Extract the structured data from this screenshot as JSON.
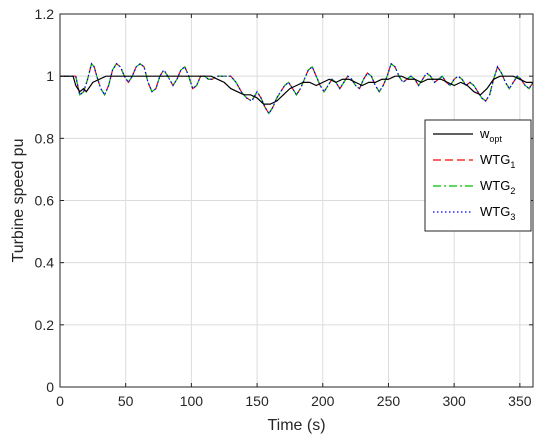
{
  "chart_data": {
    "type": "line",
    "title": "",
    "xlabel": "Time (s)",
    "ylabel": "Turbine speed pu",
    "xlim": [
      0,
      360
    ],
    "ylim": [
      0,
      1.2
    ],
    "x_ticks": [
      0,
      50,
      100,
      150,
      200,
      250,
      300,
      350
    ],
    "y_ticks": [
      0,
      0.2,
      0.4,
      0.6,
      0.8,
      1,
      1.2
    ],
    "x_tick_labels": [
      "0",
      "50",
      "100",
      "150",
      "200",
      "250",
      "300",
      "350"
    ],
    "y_tick_labels": [
      "0",
      "0.2",
      "0.4",
      "0.6",
      "0.8",
      "1",
      "1.2"
    ],
    "grid": true,
    "legend_position": "right",
    "series": [
      {
        "name": "w",
        "name_sub": "opt",
        "color": "#000000",
        "dash": "solid",
        "x": [
          0,
          5,
          10,
          12,
          15,
          18,
          20,
          25,
          30,
          35,
          40,
          45,
          50,
          55,
          60,
          70,
          80,
          90,
          100,
          110,
          115,
          120,
          125,
          130,
          135,
          140,
          145,
          150,
          155,
          160,
          165,
          170,
          175,
          180,
          185,
          190,
          195,
          200,
          205,
          210,
          215,
          220,
          225,
          230,
          235,
          240,
          245,
          250,
          255,
          260,
          265,
          270,
          275,
          280,
          285,
          290,
          295,
          300,
          305,
          310,
          315,
          320,
          325,
          330,
          335,
          340,
          345,
          350,
          355,
          360
        ],
        "y": [
          1.0,
          1.0,
          1.0,
          0.97,
          0.95,
          0.96,
          0.95,
          0.98,
          0.99,
          1.0,
          1.0,
          1.0,
          1.0,
          1.0,
          1.0,
          1.0,
          1.0,
          1.0,
          1.0,
          1.0,
          1.0,
          0.99,
          0.98,
          0.96,
          0.95,
          0.94,
          0.94,
          0.93,
          0.91,
          0.91,
          0.92,
          0.94,
          0.96,
          0.97,
          0.98,
          0.98,
          0.97,
          0.98,
          0.99,
          0.98,
          0.99,
          0.99,
          0.98,
          0.97,
          0.98,
          0.98,
          0.99,
          0.99,
          1.0,
          1.0,
          0.99,
          0.99,
          0.98,
          0.99,
          0.99,
          0.99,
          0.98,
          0.97,
          0.98,
          0.97,
          0.95,
          0.94,
          0.96,
          0.99,
          1.0,
          1.0,
          1.0,
          0.99,
          0.98,
          0.98
        ]
      },
      {
        "name": "WTG",
        "name_sub": "1",
        "color": "#ff0000",
        "dash": "dashed",
        "x": [
          0,
          4,
          8,
          12,
          15,
          18,
          21,
          24,
          26,
          28,
          31,
          34,
          37,
          40,
          43,
          46,
          49,
          52,
          55,
          58,
          61,
          64,
          67,
          70,
          73,
          76,
          79,
          82,
          86,
          89,
          92,
          95,
          98,
          101,
          104,
          107,
          110,
          113,
          116,
          119,
          122,
          126,
          130,
          134,
          138,
          142,
          146,
          150,
          153,
          156,
          159,
          162,
          165,
          168,
          171,
          174,
          177,
          180,
          183,
          186,
          189,
          192,
          195,
          198,
          201,
          204,
          207,
          210,
          213,
          216,
          219,
          222,
          225,
          228,
          231,
          234,
          237,
          240,
          243,
          246,
          249,
          252,
          255,
          258,
          261,
          264,
          267,
          270,
          273,
          276,
          279,
          282,
          285,
          288,
          291,
          294,
          297,
          300,
          303,
          306,
          309,
          312,
          315,
          318,
          321,
          324,
          327,
          330,
          333,
          336,
          339,
          342,
          345,
          348,
          351,
          354,
          357,
          360
        ],
        "y": [
          1.0,
          1.0,
          1.0,
          1.0,
          0.94,
          0.95,
          0.99,
          1.04,
          1.03,
          1.0,
          0.96,
          0.94,
          0.97,
          1.02,
          1.04,
          1.03,
          1.0,
          0.98,
          1.0,
          1.03,
          1.04,
          1.03,
          0.98,
          0.95,
          0.96,
          1.0,
          1.02,
          1.0,
          0.97,
          0.99,
          1.02,
          1.03,
          1.0,
          0.96,
          0.97,
          1.0,
          1.0,
          0.99,
          0.99,
          1.0,
          1.0,
          1.0,
          1.0,
          0.98,
          0.95,
          0.93,
          0.92,
          0.95,
          0.93,
          0.9,
          0.88,
          0.9,
          0.93,
          0.95,
          0.97,
          0.98,
          0.96,
          0.94,
          0.96,
          0.99,
          1.02,
          1.03,
          1.0,
          0.97,
          0.95,
          0.97,
          0.99,
          0.98,
          0.96,
          0.98,
          1.0,
          0.99,
          0.97,
          0.96,
          0.99,
          1.01,
          1.0,
          0.97,
          0.95,
          0.97,
          1.0,
          1.04,
          1.03,
          1.0,
          0.98,
          0.99,
          1.0,
          0.99,
          0.97,
          0.99,
          1.01,
          1.0,
          0.98,
          0.99,
          1.0,
          0.98,
          0.97,
          0.99,
          1.0,
          0.99,
          0.97,
          0.98,
          0.97,
          0.95,
          0.93,
          0.92,
          0.94,
          0.99,
          1.03,
          1.01,
          0.98,
          0.96,
          0.98,
          1.0,
          0.99,
          0.97,
          0.96,
          0.98
        ]
      },
      {
        "name": "WTG",
        "name_sub": "2",
        "color": "#00c000",
        "dash": "dashdot",
        "x": [
          0,
          4,
          8,
          12,
          15,
          18,
          21,
          24,
          26,
          28,
          31,
          34,
          37,
          40,
          43,
          46,
          49,
          52,
          55,
          58,
          61,
          64,
          67,
          70,
          73,
          76,
          79,
          82,
          86,
          89,
          92,
          95,
          98,
          101,
          104,
          107,
          110,
          113,
          116,
          119,
          122,
          126,
          130,
          134,
          138,
          142,
          146,
          150,
          153,
          156,
          159,
          162,
          165,
          168,
          171,
          174,
          177,
          180,
          183,
          186,
          189,
          192,
          195,
          198,
          201,
          204,
          207,
          210,
          213,
          216,
          219,
          222,
          225,
          228,
          231,
          234,
          237,
          240,
          243,
          246,
          249,
          252,
          255,
          258,
          261,
          264,
          267,
          270,
          273,
          276,
          279,
          282,
          285,
          288,
          291,
          294,
          297,
          300,
          303,
          306,
          309,
          312,
          315,
          318,
          321,
          324,
          327,
          330,
          333,
          336,
          339,
          342,
          345,
          348,
          351,
          354,
          357,
          360
        ],
        "y": [
          1.0,
          1.0,
          1.0,
          1.0,
          0.94,
          0.95,
          0.99,
          1.04,
          1.03,
          1.0,
          0.96,
          0.94,
          0.97,
          1.02,
          1.04,
          1.03,
          1.0,
          0.98,
          1.0,
          1.03,
          1.04,
          1.03,
          0.98,
          0.95,
          0.96,
          1.0,
          1.02,
          1.0,
          0.97,
          0.99,
          1.02,
          1.03,
          1.0,
          0.96,
          0.97,
          1.0,
          1.0,
          0.99,
          0.99,
          1.0,
          1.0,
          1.0,
          1.0,
          0.98,
          0.95,
          0.93,
          0.92,
          0.95,
          0.93,
          0.9,
          0.88,
          0.9,
          0.93,
          0.95,
          0.97,
          0.98,
          0.96,
          0.94,
          0.96,
          0.99,
          1.02,
          1.03,
          1.0,
          0.97,
          0.95,
          0.97,
          0.99,
          0.98,
          0.96,
          0.98,
          1.0,
          0.99,
          0.97,
          0.96,
          0.99,
          1.01,
          1.0,
          0.97,
          0.95,
          0.97,
          1.0,
          1.04,
          1.03,
          1.0,
          0.98,
          0.99,
          1.0,
          0.99,
          0.97,
          0.99,
          1.01,
          1.0,
          0.98,
          0.99,
          1.0,
          0.98,
          0.97,
          0.99,
          1.0,
          0.99,
          0.97,
          0.98,
          0.97,
          0.95,
          0.93,
          0.92,
          0.94,
          0.99,
          1.03,
          1.01,
          0.98,
          0.96,
          0.98,
          1.0,
          0.99,
          0.97,
          0.96,
          0.98
        ]
      },
      {
        "name": "WTG",
        "name_sub": "3",
        "color": "#0000ff",
        "dash": "dotted",
        "x": [
          0,
          4,
          8,
          12,
          15,
          18,
          21,
          24,
          26,
          28,
          31,
          34,
          37,
          40,
          43,
          46,
          49,
          52,
          55,
          58,
          61,
          64,
          67,
          70,
          73,
          76,
          79,
          82,
          86,
          89,
          92,
          95,
          98,
          101,
          104,
          107,
          110,
          113,
          116,
          119,
          122,
          126,
          130,
          134,
          138,
          142,
          146,
          150,
          153,
          156,
          159,
          162,
          165,
          168,
          171,
          174,
          177,
          180,
          183,
          186,
          189,
          192,
          195,
          198,
          201,
          204,
          207,
          210,
          213,
          216,
          219,
          222,
          225,
          228,
          231,
          234,
          237,
          240,
          243,
          246,
          249,
          252,
          255,
          258,
          261,
          264,
          267,
          270,
          273,
          276,
          279,
          282,
          285,
          288,
          291,
          294,
          297,
          300,
          303,
          306,
          309,
          312,
          315,
          318,
          321,
          324,
          327,
          330,
          333,
          336,
          339,
          342,
          345,
          348,
          351,
          354,
          357,
          360
        ],
        "y": [
          1.0,
          1.0,
          1.0,
          1.0,
          0.94,
          0.95,
          0.99,
          1.04,
          1.03,
          1.0,
          0.96,
          0.94,
          0.97,
          1.02,
          1.04,
          1.03,
          1.0,
          0.98,
          1.0,
          1.03,
          1.04,
          1.03,
          0.98,
          0.95,
          0.96,
          1.0,
          1.02,
          1.0,
          0.97,
          0.99,
          1.02,
          1.03,
          1.0,
          0.96,
          0.97,
          1.0,
          1.0,
          0.99,
          0.99,
          1.0,
          1.0,
          1.0,
          1.0,
          0.98,
          0.95,
          0.93,
          0.92,
          0.95,
          0.93,
          0.9,
          0.88,
          0.9,
          0.93,
          0.95,
          0.97,
          0.98,
          0.96,
          0.94,
          0.96,
          0.99,
          1.02,
          1.03,
          1.0,
          0.97,
          0.95,
          0.97,
          0.99,
          0.98,
          0.96,
          0.98,
          1.0,
          0.99,
          0.97,
          0.96,
          0.99,
          1.01,
          1.0,
          0.97,
          0.95,
          0.97,
          1.0,
          1.04,
          1.03,
          1.0,
          0.98,
          0.99,
          1.0,
          0.99,
          0.97,
          0.99,
          1.01,
          1.0,
          0.98,
          0.99,
          1.0,
          0.98,
          0.97,
          0.99,
          1.0,
          0.99,
          0.97,
          0.98,
          0.97,
          0.95,
          0.93,
          0.92,
          0.94,
          0.99,
          1.03,
          1.01,
          0.98,
          0.96,
          0.98,
          1.0,
          0.99,
          0.97,
          0.96,
          0.98
        ]
      }
    ]
  }
}
